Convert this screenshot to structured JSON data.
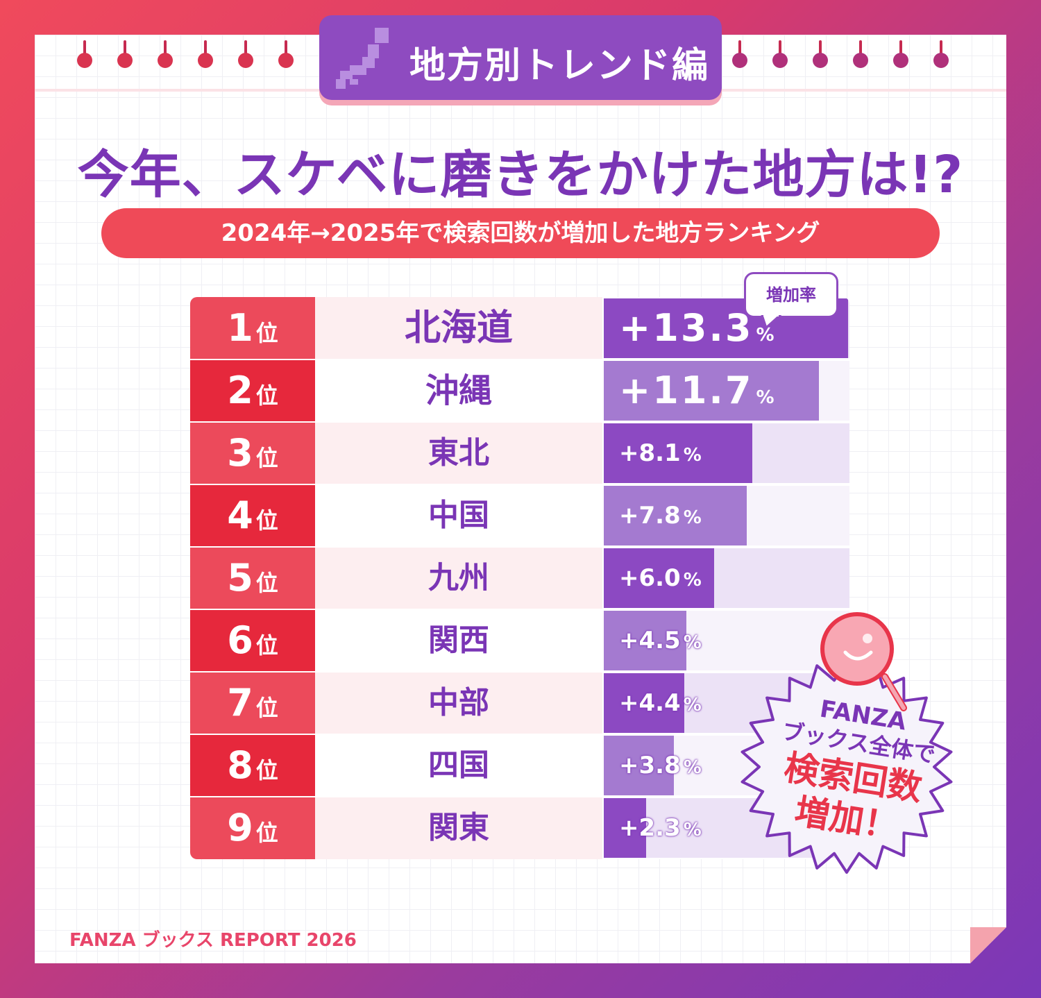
{
  "header": {
    "section_title": "地方別トレンド編",
    "headline": "今年、スケベに磨きをかけた地方は!?",
    "subtitle": "2024年→2025年で検索回数が増加した地方ランキング"
  },
  "bubble_label": "増加率",
  "rank_unit": "位",
  "percent_sign": "%",
  "badge": {
    "line1": "FANZA",
    "line2": "ブックス全体で",
    "line3": "検索回数",
    "line4": "増加！"
  },
  "footer": "FANZA ブックス REPORT 2026",
  "colors": {
    "rank_light": "#ec4a5b",
    "rank_dark": "#e6283c",
    "region_light": "#fdeef0",
    "region_dark": "#ffffff",
    "bar_dark": "#8c49c2",
    "bar_light": "#a47ad0",
    "track_dark": "#ece2f6",
    "track_light": "#f7f3fb",
    "text_purple": "#7a35b5",
    "accent_red": "#e8354a"
  },
  "chart_data": {
    "type": "bar",
    "orientation": "horizontal",
    "categories": [
      "北海道",
      "沖縄",
      "東北",
      "中国",
      "九州",
      "関西",
      "中部",
      "四国",
      "関東"
    ],
    "ranks": [
      "1",
      "2",
      "3",
      "4",
      "5",
      "6",
      "7",
      "8",
      "9"
    ],
    "values": [
      13.3,
      11.7,
      8.1,
      7.8,
      6.0,
      4.5,
      4.4,
      3.8,
      2.3
    ],
    "value_labels": [
      "+13.3",
      "+11.7",
      "+8.1",
      "+7.8",
      "+6.0",
      "+4.5",
      "+4.4",
      "+3.8",
      "+2.3"
    ],
    "value_unit": "%",
    "xlim": [
      0,
      13.3
    ]
  }
}
